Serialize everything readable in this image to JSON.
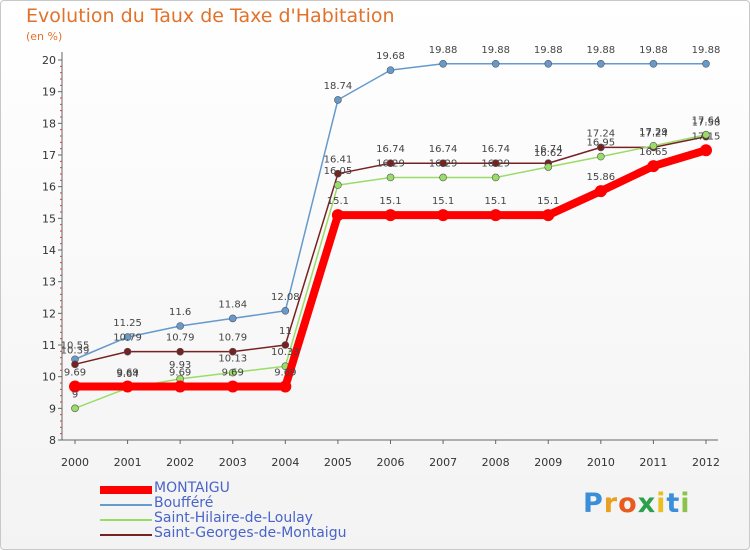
{
  "header": {
    "title": "Evolution du Taux de Taxe d'Habitation",
    "unit": "(en %)"
  },
  "chart_data": {
    "type": "line",
    "categories": [
      "2000",
      "2001",
      "2002",
      "2003",
      "2004",
      "2005",
      "2006",
      "2007",
      "2008",
      "2009",
      "2010",
      "2011",
      "2012"
    ],
    "ylim": [
      8,
      20
    ],
    "yticks": [
      "8",
      "9",
      "10",
      "11",
      "12",
      "13",
      "14",
      "15",
      "16",
      "17",
      "18",
      "19",
      "20"
    ],
    "grid": false,
    "legend_position": "bottom",
    "series": [
      {
        "name": "MONTAIGU",
        "color": "#ff0000",
        "values": [
          9.69,
          9.69,
          9.69,
          9.69,
          9.69,
          15.1,
          15.1,
          15.1,
          15.1,
          15.1,
          15.86,
          16.65,
          17.15
        ],
        "labels": [
          "9.69",
          "9.69",
          "9.69",
          "9.69",
          "9.69",
          "15.1",
          "15.1",
          "15.1",
          "15.1",
          "15.1",
          "15.86",
          "16.65",
          "17.15"
        ]
      },
      {
        "name": "Boufféré",
        "color": "#6699cc",
        "values": [
          10.55,
          11.25,
          11.6,
          11.84,
          12.08,
          18.74,
          19.68,
          19.88,
          19.88,
          19.88,
          19.88,
          19.88,
          19.88
        ],
        "labels": [
          "10.55",
          "11.25",
          "11.6",
          "11.84",
          "12.08",
          "18.74",
          "19.68",
          "19.88",
          "19.88",
          "19.88",
          "19.88",
          "19.88",
          "19.88"
        ]
      },
      {
        "name": "Saint-Hilaire-de-Loulay",
        "color": "#99dd66",
        "values": [
          9,
          9.64,
          9.93,
          10.13,
          10.33,
          16.05,
          16.29,
          16.29,
          16.29,
          16.62,
          16.95,
          17.29,
          17.64
        ],
        "labels": [
          "9",
          "9.64",
          "9.93",
          "10.13",
          "10.33",
          "16.05",
          "16.29",
          "16.29",
          "16.29",
          "16.62",
          "16.95",
          "17.29",
          "17.64"
        ]
      },
      {
        "name": "Saint-Georges-de-Montaigu",
        "color": "#772222",
        "values": [
          10.39,
          10.79,
          10.79,
          10.79,
          11,
          16.41,
          16.74,
          16.74,
          16.74,
          16.74,
          17.24,
          17.24,
          17.58
        ],
        "labels": [
          "10.39",
          "10.79",
          "10.79",
          "10.79",
          "11",
          "16.41",
          "16.74",
          "16.74",
          "16.74",
          "16.74",
          "17.24",
          "17.24",
          "17.58"
        ]
      }
    ]
  },
  "legend": [
    {
      "name": "MONTAIGU",
      "color": "#ff0000"
    },
    {
      "name": "Boufféré",
      "color": "#6699cc"
    },
    {
      "name": "Saint-Hilaire-de-Loulay",
      "color": "#99dd66"
    },
    {
      "name": "Saint-Georges-de-Montaigu",
      "color": "#772222"
    }
  ],
  "brand": {
    "letters": [
      "P",
      "r",
      "o",
      "x",
      "i",
      "t",
      "i"
    ],
    "colors": [
      "#3b8fd9",
      "#e8a020",
      "#e85a20",
      "#2aa14a",
      "#e8c020",
      "#3b8fd9",
      "#8bc34a"
    ]
  }
}
